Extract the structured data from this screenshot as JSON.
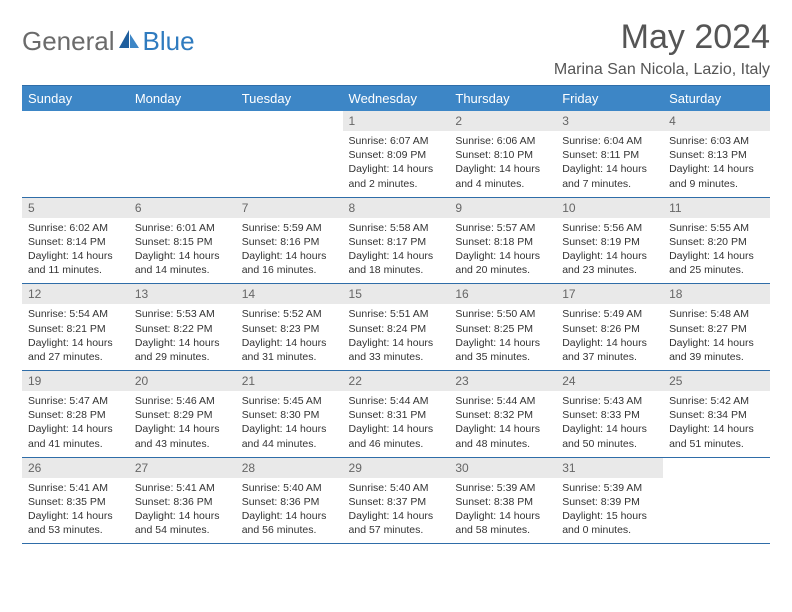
{
  "brand": {
    "part1": "General",
    "part2": "Blue"
  },
  "title": "May 2024",
  "location": "Marina San Nicola, Lazio, Italy",
  "colors": {
    "header_bg": "#3d86c6",
    "header_text": "#ffffff",
    "daynum_bg": "#e9e9e9",
    "border": "#2f6da8",
    "logo_gray": "#6b6b6b",
    "logo_blue": "#2f7bbf"
  },
  "weekdays": [
    "Sunday",
    "Monday",
    "Tuesday",
    "Wednesday",
    "Thursday",
    "Friday",
    "Saturday"
  ],
  "rows": [
    [
      {
        "num": "",
        "sunrise": "",
        "sunset": "",
        "daylight": ""
      },
      {
        "num": "",
        "sunrise": "",
        "sunset": "",
        "daylight": ""
      },
      {
        "num": "",
        "sunrise": "",
        "sunset": "",
        "daylight": ""
      },
      {
        "num": "1",
        "sunrise": "Sunrise: 6:07 AM",
        "sunset": "Sunset: 8:09 PM",
        "daylight": "Daylight: 14 hours and 2 minutes."
      },
      {
        "num": "2",
        "sunrise": "Sunrise: 6:06 AM",
        "sunset": "Sunset: 8:10 PM",
        "daylight": "Daylight: 14 hours and 4 minutes."
      },
      {
        "num": "3",
        "sunrise": "Sunrise: 6:04 AM",
        "sunset": "Sunset: 8:11 PM",
        "daylight": "Daylight: 14 hours and 7 minutes."
      },
      {
        "num": "4",
        "sunrise": "Sunrise: 6:03 AM",
        "sunset": "Sunset: 8:13 PM",
        "daylight": "Daylight: 14 hours and 9 minutes."
      }
    ],
    [
      {
        "num": "5",
        "sunrise": "Sunrise: 6:02 AM",
        "sunset": "Sunset: 8:14 PM",
        "daylight": "Daylight: 14 hours and 11 minutes."
      },
      {
        "num": "6",
        "sunrise": "Sunrise: 6:01 AM",
        "sunset": "Sunset: 8:15 PM",
        "daylight": "Daylight: 14 hours and 14 minutes."
      },
      {
        "num": "7",
        "sunrise": "Sunrise: 5:59 AM",
        "sunset": "Sunset: 8:16 PM",
        "daylight": "Daylight: 14 hours and 16 minutes."
      },
      {
        "num": "8",
        "sunrise": "Sunrise: 5:58 AM",
        "sunset": "Sunset: 8:17 PM",
        "daylight": "Daylight: 14 hours and 18 minutes."
      },
      {
        "num": "9",
        "sunrise": "Sunrise: 5:57 AM",
        "sunset": "Sunset: 8:18 PM",
        "daylight": "Daylight: 14 hours and 20 minutes."
      },
      {
        "num": "10",
        "sunrise": "Sunrise: 5:56 AM",
        "sunset": "Sunset: 8:19 PM",
        "daylight": "Daylight: 14 hours and 23 minutes."
      },
      {
        "num": "11",
        "sunrise": "Sunrise: 5:55 AM",
        "sunset": "Sunset: 8:20 PM",
        "daylight": "Daylight: 14 hours and 25 minutes."
      }
    ],
    [
      {
        "num": "12",
        "sunrise": "Sunrise: 5:54 AM",
        "sunset": "Sunset: 8:21 PM",
        "daylight": "Daylight: 14 hours and 27 minutes."
      },
      {
        "num": "13",
        "sunrise": "Sunrise: 5:53 AM",
        "sunset": "Sunset: 8:22 PM",
        "daylight": "Daylight: 14 hours and 29 minutes."
      },
      {
        "num": "14",
        "sunrise": "Sunrise: 5:52 AM",
        "sunset": "Sunset: 8:23 PM",
        "daylight": "Daylight: 14 hours and 31 minutes."
      },
      {
        "num": "15",
        "sunrise": "Sunrise: 5:51 AM",
        "sunset": "Sunset: 8:24 PM",
        "daylight": "Daylight: 14 hours and 33 minutes."
      },
      {
        "num": "16",
        "sunrise": "Sunrise: 5:50 AM",
        "sunset": "Sunset: 8:25 PM",
        "daylight": "Daylight: 14 hours and 35 minutes."
      },
      {
        "num": "17",
        "sunrise": "Sunrise: 5:49 AM",
        "sunset": "Sunset: 8:26 PM",
        "daylight": "Daylight: 14 hours and 37 minutes."
      },
      {
        "num": "18",
        "sunrise": "Sunrise: 5:48 AM",
        "sunset": "Sunset: 8:27 PM",
        "daylight": "Daylight: 14 hours and 39 minutes."
      }
    ],
    [
      {
        "num": "19",
        "sunrise": "Sunrise: 5:47 AM",
        "sunset": "Sunset: 8:28 PM",
        "daylight": "Daylight: 14 hours and 41 minutes."
      },
      {
        "num": "20",
        "sunrise": "Sunrise: 5:46 AM",
        "sunset": "Sunset: 8:29 PM",
        "daylight": "Daylight: 14 hours and 43 minutes."
      },
      {
        "num": "21",
        "sunrise": "Sunrise: 5:45 AM",
        "sunset": "Sunset: 8:30 PM",
        "daylight": "Daylight: 14 hours and 44 minutes."
      },
      {
        "num": "22",
        "sunrise": "Sunrise: 5:44 AM",
        "sunset": "Sunset: 8:31 PM",
        "daylight": "Daylight: 14 hours and 46 minutes."
      },
      {
        "num": "23",
        "sunrise": "Sunrise: 5:44 AM",
        "sunset": "Sunset: 8:32 PM",
        "daylight": "Daylight: 14 hours and 48 minutes."
      },
      {
        "num": "24",
        "sunrise": "Sunrise: 5:43 AM",
        "sunset": "Sunset: 8:33 PM",
        "daylight": "Daylight: 14 hours and 50 minutes."
      },
      {
        "num": "25",
        "sunrise": "Sunrise: 5:42 AM",
        "sunset": "Sunset: 8:34 PM",
        "daylight": "Daylight: 14 hours and 51 minutes."
      }
    ],
    [
      {
        "num": "26",
        "sunrise": "Sunrise: 5:41 AM",
        "sunset": "Sunset: 8:35 PM",
        "daylight": "Daylight: 14 hours and 53 minutes."
      },
      {
        "num": "27",
        "sunrise": "Sunrise: 5:41 AM",
        "sunset": "Sunset: 8:36 PM",
        "daylight": "Daylight: 14 hours and 54 minutes."
      },
      {
        "num": "28",
        "sunrise": "Sunrise: 5:40 AM",
        "sunset": "Sunset: 8:36 PM",
        "daylight": "Daylight: 14 hours and 56 minutes."
      },
      {
        "num": "29",
        "sunrise": "Sunrise: 5:40 AM",
        "sunset": "Sunset: 8:37 PM",
        "daylight": "Daylight: 14 hours and 57 minutes."
      },
      {
        "num": "30",
        "sunrise": "Sunrise: 5:39 AM",
        "sunset": "Sunset: 8:38 PM",
        "daylight": "Daylight: 14 hours and 58 minutes."
      },
      {
        "num": "31",
        "sunrise": "Sunrise: 5:39 AM",
        "sunset": "Sunset: 8:39 PM",
        "daylight": "Daylight: 15 hours and 0 minutes."
      },
      {
        "num": "",
        "sunrise": "",
        "sunset": "",
        "daylight": ""
      }
    ]
  ]
}
